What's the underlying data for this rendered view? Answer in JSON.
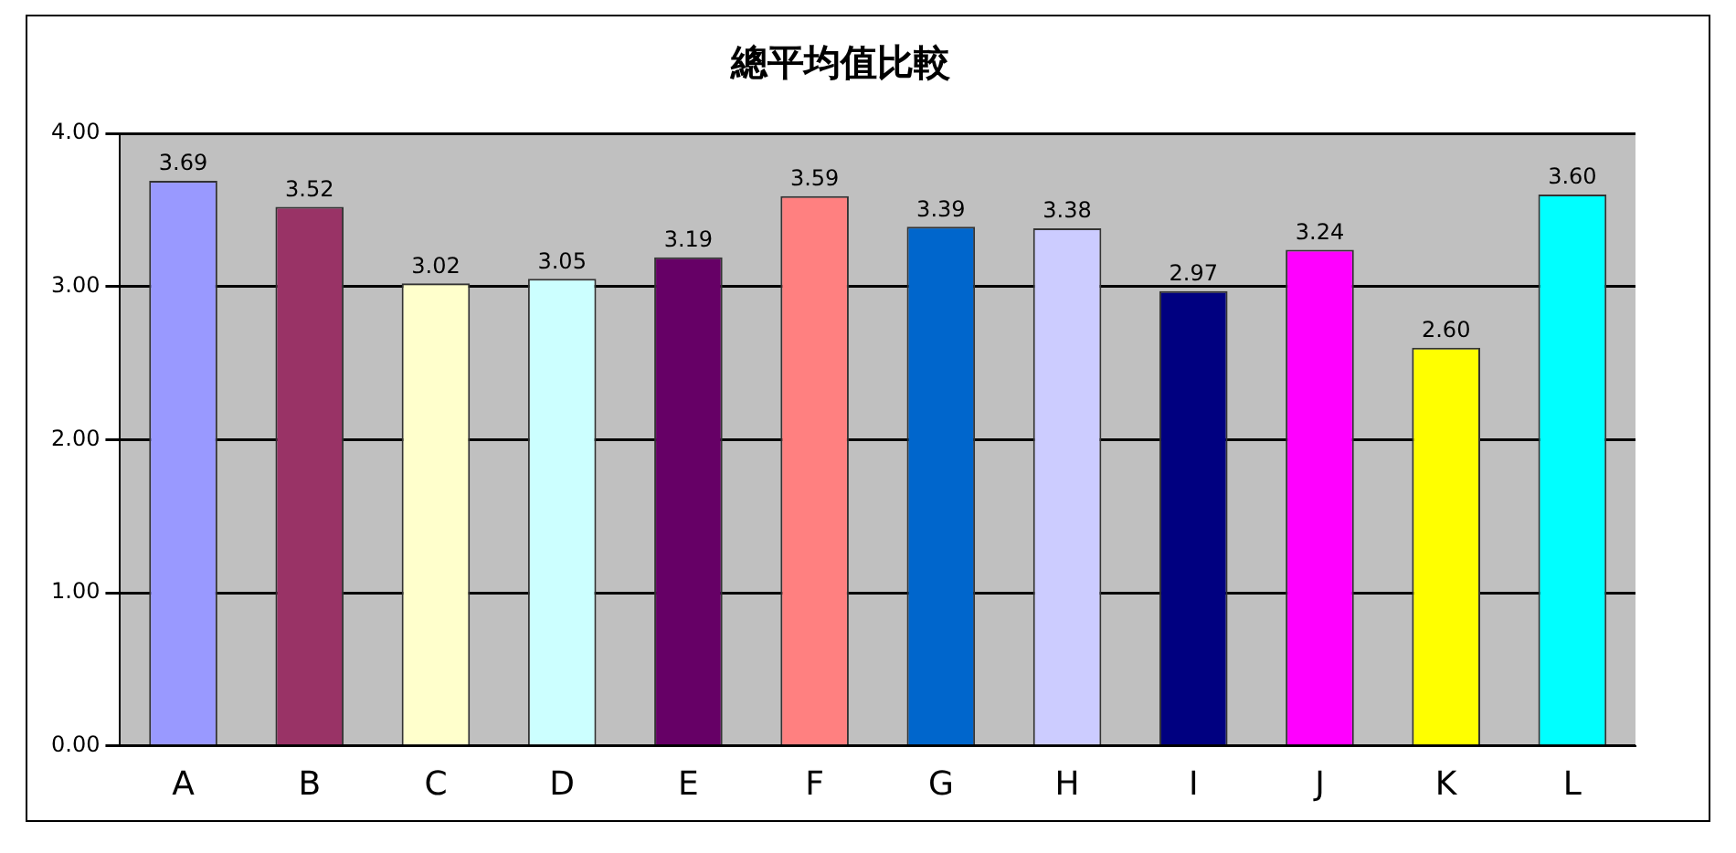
{
  "chart_data": {
    "type": "bar",
    "title": "總平均值比較",
    "categories": [
      "A",
      "B",
      "C",
      "D",
      "E",
      "F",
      "G",
      "H",
      "I",
      "J",
      "K",
      "L"
    ],
    "values": [
      3.69,
      3.52,
      3.02,
      3.05,
      3.19,
      3.59,
      3.39,
      3.38,
      2.97,
      3.24,
      2.6,
      3.6
    ],
    "value_labels": [
      "3.69",
      "3.52",
      "3.02",
      "3.05",
      "3.19",
      "3.59",
      "3.39",
      "3.38",
      "2.97",
      "3.24",
      "2.60",
      "3.60"
    ],
    "colors": [
      "#9999ff",
      "#993366",
      "#ffffcc",
      "#ccffff",
      "#660066",
      "#ff8080",
      "#0066cc",
      "#ccccff",
      "#000080",
      "#ff00ff",
      "#ffff00",
      "#00ffff"
    ],
    "ylim": [
      0,
      4
    ],
    "yticks": [
      {
        "value": 0,
        "label": "0.00"
      },
      {
        "value": 1,
        "label": "1.00"
      },
      {
        "value": 2,
        "label": "2.00"
      },
      {
        "value": 3,
        "label": "3.00"
      },
      {
        "value": 4,
        "label": "4.00"
      }
    ],
    "grid": "y",
    "legend": false
  }
}
